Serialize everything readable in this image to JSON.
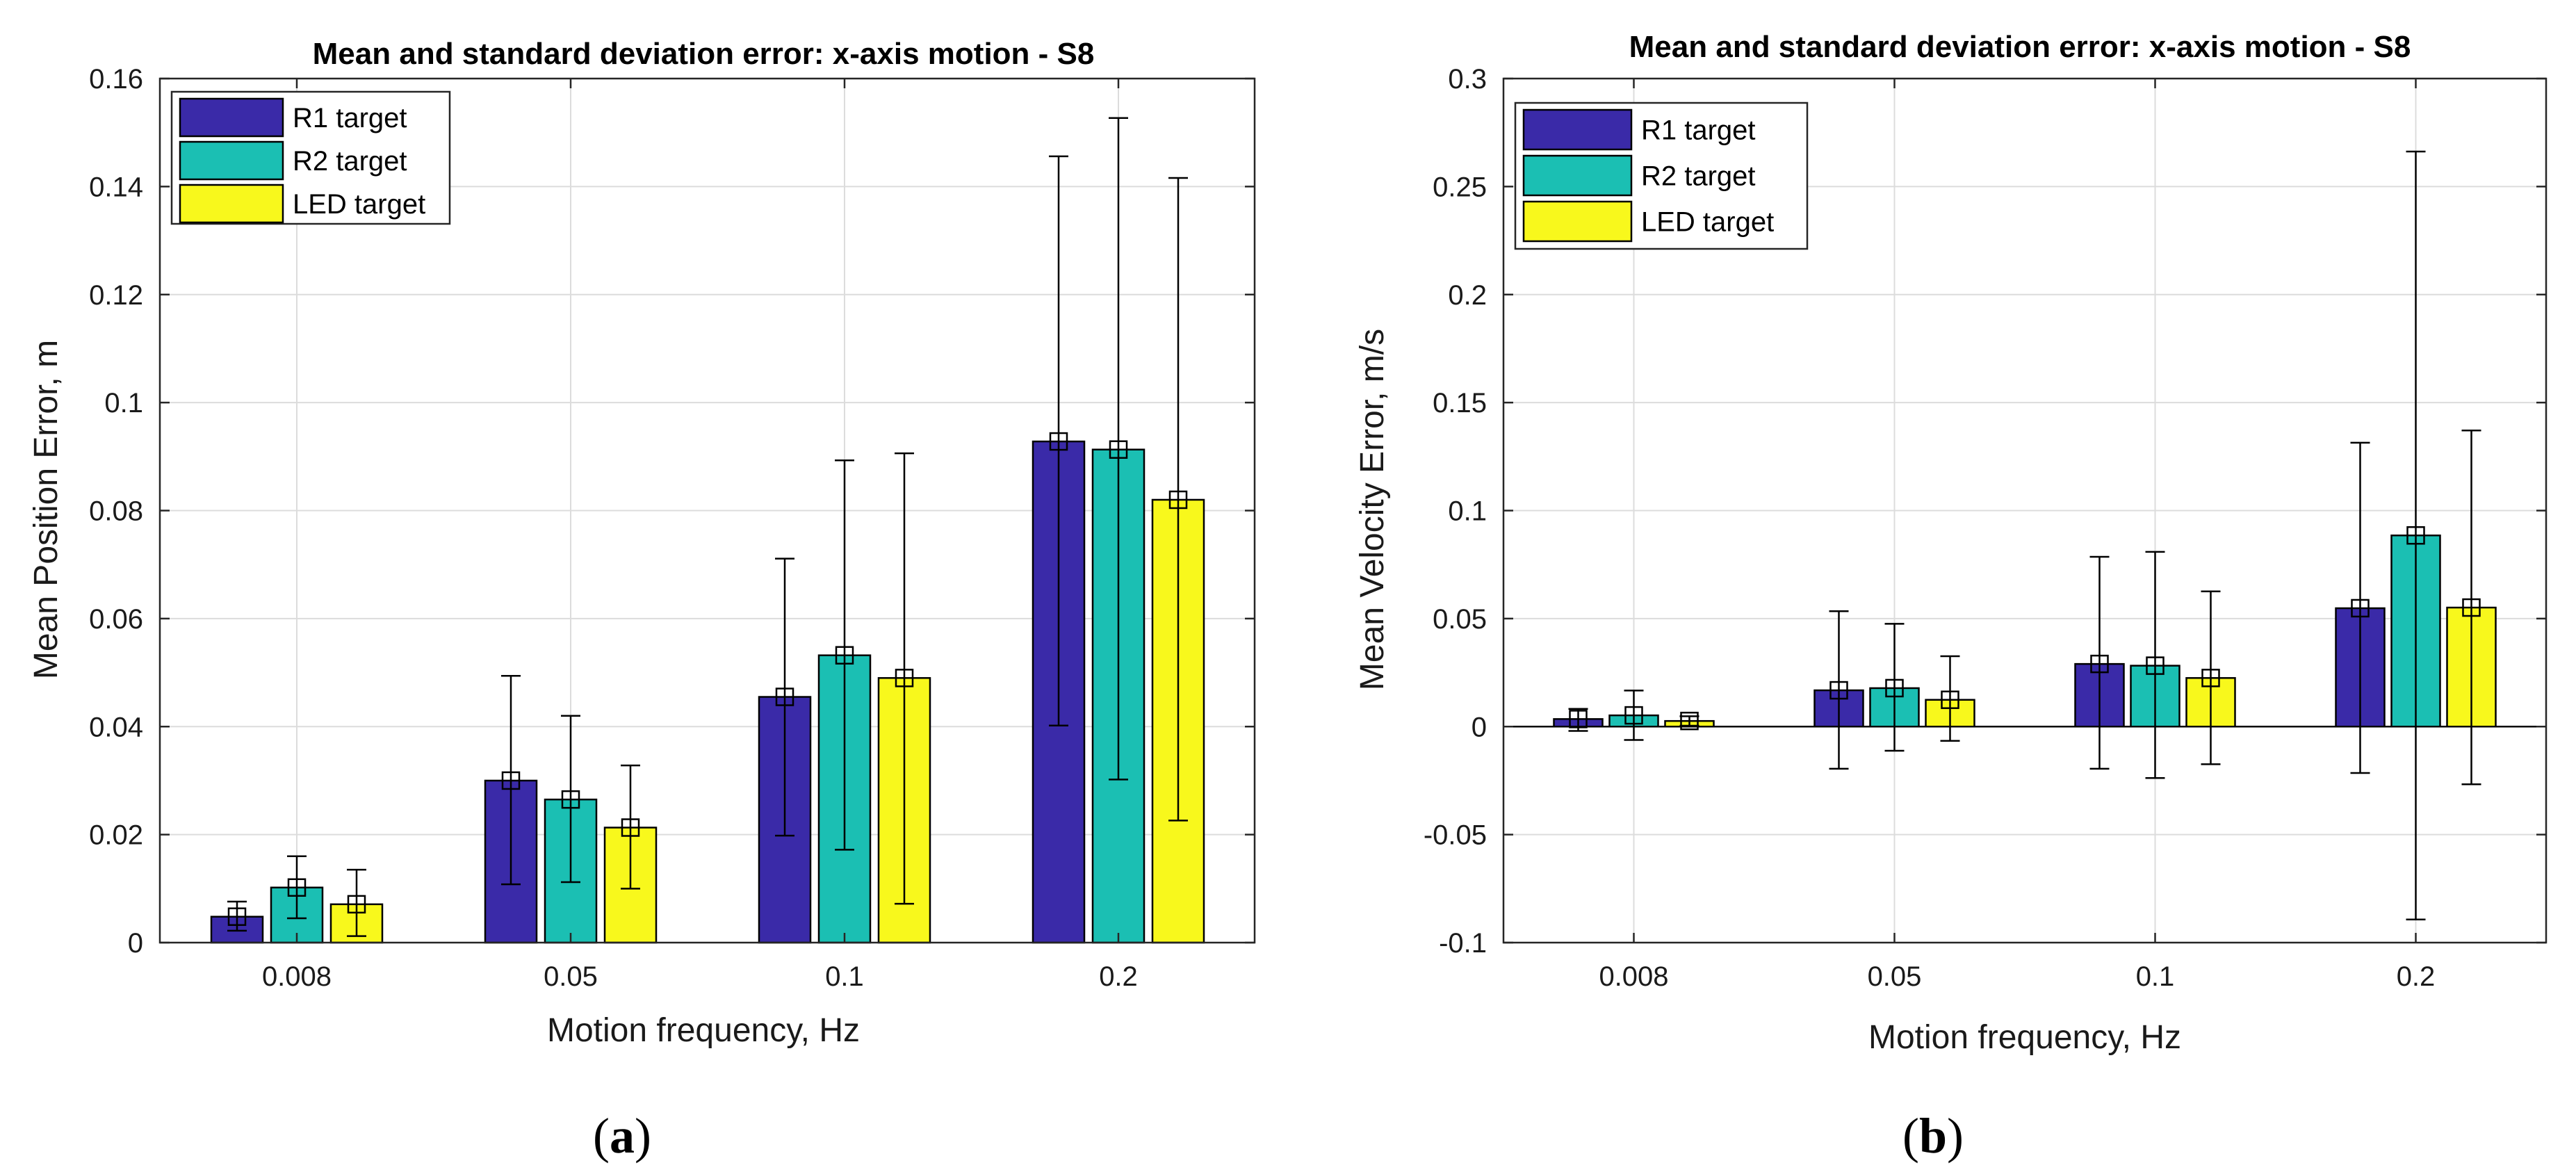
{
  "chart_data": [
    {
      "type": "bar",
      "panel": "a",
      "caption_open": "(",
      "caption_letter": "a",
      "caption_close": ")",
      "title": "Mean and standard deviation error: x-axis motion - S8",
      "xlabel": "Motion frequency, Hz",
      "ylabel": "Mean Position Error, m",
      "categories": [
        "0.008",
        "0.05",
        "0.1",
        "0.2"
      ],
      "ylim": [
        0,
        0.16
      ],
      "yticks": [
        0,
        0.02,
        0.04,
        0.06,
        0.08,
        0.1,
        0.12,
        0.14,
        0.16
      ],
      "yticklabels": [
        "0",
        "0.02",
        "0.04",
        "0.06",
        "0.08",
        "0.1",
        "0.12",
        "0.14",
        "0.16"
      ],
      "grid": true,
      "legend_position": "top-left",
      "series": [
        {
          "name": "R1 target",
          "color": "#3a2aa8",
          "values": [
            0.0048,
            0.03,
            0.0455,
            0.0928
          ],
          "err_low": [
            0.0022,
            0.0108,
            0.0198,
            0.0402
          ],
          "err_high": [
            0.0076,
            0.0494,
            0.0711,
            0.1456
          ]
        },
        {
          "name": "R2 target",
          "color": "#1bbfb3",
          "values": [
            0.0102,
            0.0265,
            0.0532,
            0.0913
          ],
          "err_low": [
            0.0045,
            0.0112,
            0.0172,
            0.0302
          ],
          "err_high": [
            0.016,
            0.042,
            0.0893,
            0.1527
          ]
        },
        {
          "name": "LED target",
          "color": "#f8f81c",
          "values": [
            0.0071,
            0.0213,
            0.049,
            0.082
          ],
          "err_low": [
            0.0012,
            0.01,
            0.0072,
            0.0226
          ],
          "err_high": [
            0.0135,
            0.0328,
            0.0906,
            0.1416
          ]
        }
      ]
    },
    {
      "type": "bar",
      "panel": "b",
      "caption_open": "(",
      "caption_letter": "b",
      "caption_close": ")",
      "title": "Mean and standard deviation error: x-axis motion - S8",
      "xlabel": "Motion frequency, Hz",
      "ylabel": "Mean Velocity Error, m/s",
      "categories": [
        "0.008",
        "0.05",
        "0.1",
        "0.2"
      ],
      "ylim": [
        -0.1,
        0.3
      ],
      "yticks": [
        -0.1,
        -0.05,
        0,
        0.05,
        0.1,
        0.15,
        0.2,
        0.25,
        0.3
      ],
      "yticklabels": [
        "-0.1",
        "-0.05",
        "0",
        "0.05",
        "0.1",
        "0.15",
        "0.2",
        "0.25",
        "0.3"
      ],
      "grid": true,
      "legend_position": "top-left",
      "series": [
        {
          "name": "R1 target",
          "color": "#3a2aa8",
          "values": [
            0.0035,
            0.0168,
            0.029,
            0.0548
          ],
          "err_low": [
            -0.002,
            -0.0195,
            -0.0195,
            -0.0215
          ],
          "err_high": [
            0.0082,
            0.0534,
            0.0786,
            0.1314
          ]
        },
        {
          "name": "R2 target",
          "color": "#1bbfb3",
          "values": [
            0.0052,
            0.0178,
            0.0282,
            0.0885
          ],
          "err_low": [
            -0.0062,
            -0.0112,
            -0.0238,
            -0.0893
          ],
          "err_high": [
            0.0167,
            0.0476,
            0.0809,
            0.2662
          ]
        },
        {
          "name": "LED target",
          "color": "#f8f81c",
          "values": [
            0.0026,
            0.0124,
            0.0225,
            0.0551
          ],
          "err_low": [
            0.0004,
            -0.0066,
            -0.0174,
            -0.0267
          ],
          "err_high": [
            0.0048,
            0.0326,
            0.0626,
            0.1371
          ]
        }
      ]
    }
  ]
}
